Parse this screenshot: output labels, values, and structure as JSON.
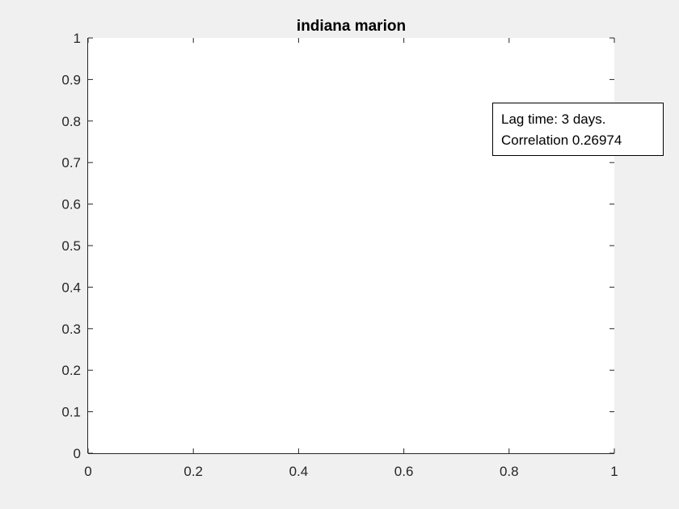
{
  "chart_data": {
    "type": "line",
    "title": "indiana marion",
    "xlabel": "",
    "ylabel": "",
    "xlim": [
      0,
      1
    ],
    "ylim": [
      0,
      1
    ],
    "x_ticks": [
      0,
      0.2,
      0.4,
      0.6,
      0.8,
      1
    ],
    "x_tick_labels": [
      "0",
      "0.2",
      "0.4",
      "0.6",
      "0.8",
      "1"
    ],
    "y_ticks": [
      0,
      0.1,
      0.2,
      0.3,
      0.4,
      0.5,
      0.6,
      0.7,
      0.8,
      0.9,
      1
    ],
    "y_tick_labels": [
      "0",
      "0.1",
      "0.2",
      "0.3",
      "0.4",
      "0.5",
      "0.6",
      "0.7",
      "0.8",
      "0.9",
      "1"
    ],
    "series": [],
    "grid": false,
    "annotation": {
      "lines": [
        "Lag time: 3 days.",
        "Correlation 0.26974"
      ],
      "placement": "top-right"
    }
  },
  "colors": {
    "figure_background": "#f0f0f0",
    "axes_background": "#ffffff",
    "axis_color": "#262626",
    "annotation_border": "#000000"
  }
}
